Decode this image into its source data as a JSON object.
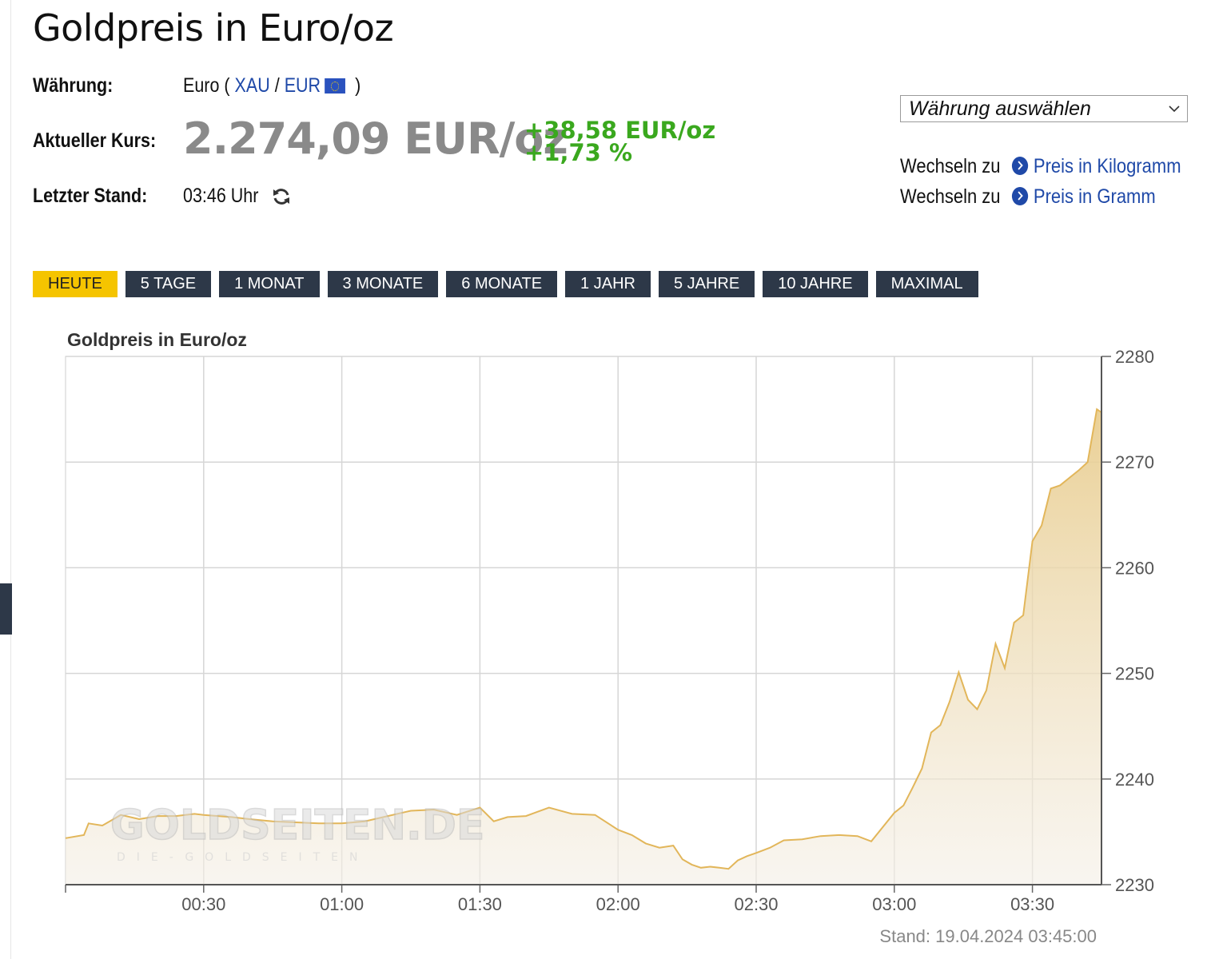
{
  "page": {
    "title": "Goldpreis in Euro/oz"
  },
  "info": {
    "currency_label": "Währung:",
    "currency_value": "Euro (",
    "xau_link": "XAU",
    "slash": "/",
    "eur_link": "EUR",
    "close_paren": ")",
    "rate_label": "Aktueller Kurs:",
    "rate_value": "2.274,09 EUR/oz",
    "change_abs": "+38,58 EUR/oz",
    "change_pct": "+1,73 %",
    "updated_label": "Letzter Stand:",
    "updated_value": "03:46 Uhr"
  },
  "currency_select": {
    "value": "Währung auswählen"
  },
  "switch_links": [
    {
      "prefix": "Wechseln zu",
      "label": "Preis in Kilogramm"
    },
    {
      "prefix": "Wechseln zu",
      "label": "Preis in Gramm"
    }
  ],
  "range_tabs": [
    "HEUTE",
    "5 TAGE",
    "1 MONAT",
    "3 MONATE",
    "6 MONATE",
    "1 JAHR",
    "5 JAHRE",
    "10 JAHRE",
    "MAXIMAL"
  ],
  "active_tab": "HEUTE",
  "colors": {
    "accent": "#f5c400",
    "tab_bg": "#2d3848",
    "line": "#e2b65a",
    "positive": "#3aa81e",
    "link": "#1f49a8"
  },
  "icons": {
    "refresh": "refresh-icon",
    "dropdown": "chevron-down-icon",
    "link_arrow": "chevron-right-circle-icon"
  },
  "chart_data": {
    "type": "area",
    "title": "Goldpreis in Euro/oz",
    "xlabel": "",
    "ylabel": "",
    "x_ticks": [
      "00:30",
      "01:00",
      "01:30",
      "02:00",
      "02:30",
      "03:00",
      "03:30"
    ],
    "y_ticks": [
      2230,
      2240,
      2250,
      2260,
      2270,
      2280
    ],
    "ylim": [
      2230,
      2280
    ],
    "xlim": [
      "00:00",
      "03:45"
    ],
    "grid": true,
    "watermark": {
      "main": "GOLDSEITEN.DE",
      "sub": "DIE-GOLDSEITEN"
    },
    "footer": "Stand: 19.04.2024 03:45:00",
    "series": [
      {
        "x": [
          "00:00",
          "00:04",
          "00:05",
          "00:08",
          "00:10",
          "00:12",
          "00:16",
          "00:20",
          "00:24",
          "00:28",
          "00:30",
          "00:36",
          "00:40",
          "00:45",
          "00:50",
          "00:55",
          "01:00",
          "01:05",
          "01:10",
          "01:15",
          "01:20",
          "01:25",
          "01:30",
          "01:33",
          "01:36",
          "01:40",
          "01:45",
          "01:50",
          "01:55",
          "02:00",
          "02:03",
          "02:06",
          "02:09",
          "02:12",
          "02:14",
          "02:16",
          "02:18",
          "02:20",
          "02:22",
          "02:24",
          "02:26",
          "02:28",
          "02:30",
          "02:33",
          "02:36",
          "02:40",
          "02:44",
          "02:48",
          "02:52",
          "02:55",
          "03:00",
          "03:02",
          "03:04",
          "03:06",
          "03:08",
          "03:10",
          "03:12",
          "03:14",
          "03:16",
          "03:18",
          "03:20",
          "03:22",
          "03:24",
          "03:26",
          "03:28",
          "03:30",
          "03:32",
          "03:34",
          "03:36",
          "03:38",
          "03:40",
          "03:42",
          "03:44",
          "03:45"
        ],
        "y": [
          2234.4,
          2234.7,
          2235.8,
          2235.6,
          2236.1,
          2236.6,
          2236.2,
          2236.5,
          2236.5,
          2236.7,
          2236.6,
          2236.4,
          2236.2,
          2236.0,
          2235.9,
          2235.8,
          2235.8,
          2236.0,
          2236.5,
          2237.0,
          2237.1,
          2236.6,
          2237.3,
          2236.0,
          2236.4,
          2236.5,
          2237.3,
          2236.7,
          2236.6,
          2235.2,
          2234.7,
          2233.9,
          2233.5,
          2233.7,
          2232.4,
          2231.9,
          2231.6,
          2231.7,
          2231.6,
          2231.5,
          2232.3,
          2232.7,
          2233.0,
          2233.5,
          2234.2,
          2234.3,
          2234.6,
          2234.7,
          2234.6,
          2234.1,
          2236.8,
          2237.5,
          2239.2,
          2241.0,
          2244.4,
          2245.1,
          2247.3,
          2250.1,
          2247.5,
          2246.6,
          2248.4,
          2252.8,
          2250.5,
          2254.8,
          2255.5,
          2262.5,
          2264.0,
          2267.5,
          2267.8,
          2268.5,
          2269.2,
          2270.0,
          2275.0,
          2274.7
        ]
      }
    ]
  }
}
